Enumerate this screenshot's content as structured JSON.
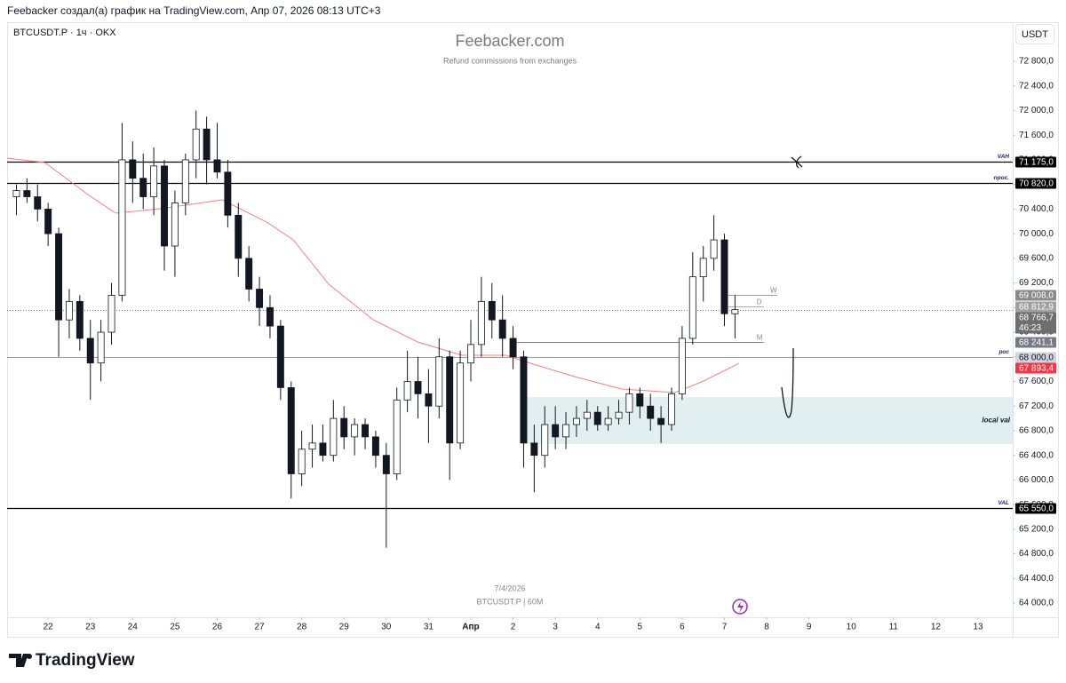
{
  "header": {
    "text": "Feebacker создал(а) график на TradingView.com, Апр 07, 2026 08:13 UTC+3"
  },
  "chart_data": {
    "type": "candlestick",
    "symbol": "BTCUSDT.P · 1ч · OKX",
    "title": "Feebacker.com",
    "subtitle": "Refund commissions from exchanges",
    "currency": "USDT",
    "up_color": "#ffffff",
    "down_color": "#131722",
    "grid": false,
    "x": [
      21.25,
      21.5,
      21.75,
      22,
      22.25,
      22.5,
      22.75,
      23,
      23.25,
      23.5,
      23.75,
      24,
      24.25,
      24.5,
      24.75,
      25,
      25.25,
      25.5,
      25.75,
      26,
      26.25,
      26.5,
      26.75,
      27,
      27.25,
      27.5,
      27.75,
      28,
      28.25,
      28.5,
      28.75,
      29,
      29.25,
      29.5,
      29.75,
      30,
      30.25,
      30.5,
      30.75,
      31,
      31.25,
      31.5,
      31.75,
      32,
      32.25,
      32.5,
      32.75,
      33,
      33.25,
      33.5,
      33.75,
      34,
      34.25,
      34.5,
      34.75,
      35,
      35.25,
      35.5,
      35.75,
      36,
      36.25,
      36.5,
      36.75,
      37,
      37.25,
      37.5,
      37.75,
      38,
      38.25
    ],
    "open": [
      70600,
      70700,
      70600,
      70400,
      70000,
      68600,
      68900,
      68300,
      67900,
      68400,
      69000,
      71200,
      70900,
      70600,
      71100,
      69800,
      70500,
      71200,
      71700,
      71200,
      71000,
      70300,
      69600,
      69100,
      68800,
      68500,
      67500,
      66100,
      66500,
      66600,
      66400,
      67000,
      66700,
      66900,
      66700,
      66400,
      66100,
      67300,
      67600,
      67400,
      67200,
      68000,
      66600,
      67900,
      68200,
      68900,
      68600,
      68300,
      68000,
      66600,
      66400,
      66900,
      66700,
      66900,
      67000,
      67100,
      66900,
      67000,
      67100,
      67400,
      67200,
      67000,
      66900,
      67400,
      68300,
      69300,
      69600,
      69900,
      68700
    ],
    "high": [
      70800,
      70900,
      70800,
      70500,
      70100,
      69100,
      69000,
      68600,
      68600,
      69200,
      71800,
      71500,
      71300,
      71400,
      71200,
      70700,
      71300,
      72000,
      71900,
      71800,
      71200,
      70500,
      69800,
      69300,
      69000,
      68600,
      67600,
      66800,
      66900,
      66900,
      67300,
      67200,
      67000,
      67000,
      66800,
      66600,
      67500,
      68100,
      68000,
      67800,
      68300,
      68100,
      68100,
      68600,
      69300,
      69200,
      69000,
      68500,
      68100,
      66900,
      67200,
      67200,
      67100,
      67200,
      67300,
      67200,
      67200,
      67300,
      67500,
      67500,
      67400,
      67200,
      67500,
      68500,
      69700,
      69800,
      70300,
      70000,
      69000
    ],
    "low": [
      70300,
      70500,
      70200,
      69800,
      68000,
      68300,
      68100,
      67300,
      67600,
      68200,
      68900,
      70500,
      70400,
      70300,
      69400,
      69300,
      70300,
      70900,
      70800,
      70900,
      70100,
      69300,
      68900,
      68500,
      68300,
      67300,
      65700,
      65900,
      66200,
      66300,
      66300,
      66500,
      66400,
      66500,
      66200,
      64900,
      66000,
      67100,
      67000,
      66600,
      67000,
      66000,
      66500,
      67600,
      68000,
      68300,
      68000,
      67800,
      66200,
      65800,
      66200,
      66500,
      66500,
      66700,
      66800,
      66800,
      66800,
      66900,
      66900,
      67000,
      66800,
      66600,
      66800,
      67300,
      68200,
      68900,
      69400,
      68500,
      68300
    ],
    "close": [
      70700,
      70600,
      70400,
      70000,
      68600,
      68900,
      68300,
      67900,
      68400,
      69000,
      71200,
      70900,
      70600,
      71100,
      69800,
      70500,
      71200,
      71700,
      71200,
      71000,
      70300,
      69600,
      69100,
      68800,
      68500,
      67500,
      66100,
      66500,
      66600,
      66400,
      67000,
      66700,
      66900,
      66700,
      66400,
      66100,
      67300,
      67600,
      67400,
      67200,
      68000,
      66600,
      67900,
      68200,
      68900,
      68600,
      68300,
      68000,
      66600,
      66400,
      66900,
      66700,
      66900,
      67000,
      67100,
      66900,
      67000,
      67100,
      67400,
      67200,
      67000,
      66900,
      67400,
      68300,
      69300,
      69600,
      69900,
      68700,
      68766.7
    ],
    "xlim": [
      21.03,
      44.82
    ],
    "xticks": [
      22,
      23,
      24,
      25,
      26,
      27,
      28,
      29,
      30,
      31,
      {
        "value": 32,
        "label": "Апр"
      },
      {
        "value": 33,
        "label": "2"
      },
      {
        "value": 34,
        "label": "3"
      },
      {
        "value": 35,
        "label": "4"
      },
      {
        "value": 36,
        "label": "5"
      },
      {
        "value": 37,
        "label": "6"
      },
      {
        "value": 38,
        "label": "7"
      },
      {
        "value": 39,
        "label": "8"
      },
      {
        "value": 40,
        "label": "9"
      },
      {
        "value": 41,
        "label": "10"
      },
      {
        "value": 42,
        "label": "11"
      },
      {
        "value": 43,
        "label": "12"
      },
      {
        "value": 44,
        "label": "13"
      }
    ],
    "ylim": [
      63770,
      73435
    ],
    "yticks": [
      {
        "value": 64000,
        "label": "64 000,0"
      },
      {
        "value": 64400,
        "label": "64 400,0"
      },
      {
        "value": 64800,
        "label": "64 800,0"
      },
      {
        "value": 65200,
        "label": "65 200,0"
      },
      {
        "value": 65600,
        "label": "65 600,0"
      },
      {
        "value": 66000,
        "label": "66 000,0"
      },
      {
        "value": 66400,
        "label": "66 400,0"
      },
      {
        "value": 66800,
        "label": "66 800,0"
      },
      {
        "value": 67200,
        "label": "67 200,0"
      },
      {
        "value": 67600,
        "label": "67 600,0"
      },
      {
        "value": 68000,
        "label": "68 000,0"
      },
      {
        "value": 68400,
        "label": "68 400,0"
      },
      {
        "value": 68800,
        "label": "68 800,0"
      },
      {
        "value": 69200,
        "label": "69 200,0"
      },
      {
        "value": 69600,
        "label": "69 600,0"
      },
      {
        "value": 70000,
        "label": "70 000,0"
      },
      {
        "value": 70400,
        "label": "70 400,0"
      },
      {
        "value": 70800,
        "label": "70 800,0"
      },
      {
        "value": 71200,
        "label": "71 200,0"
      },
      {
        "value": 71600,
        "label": "71 600,0"
      },
      {
        "value": 72000,
        "label": "72 000,0"
      },
      {
        "value": 72400,
        "label": "72 400,0"
      },
      {
        "value": 72800,
        "label": "72 800,0"
      }
    ],
    "overlays": [
      {
        "type": "line",
        "color": "#f08080",
        "x": [
          21.03,
          21.92,
          22.97,
          23.6,
          24.65,
          26.12,
          27.17,
          27.8,
          28.64,
          29.69,
          30.74,
          31.79,
          32.84,
          33.47,
          34.52,
          35.57,
          36.83,
          37.46,
          38.34
        ],
        "values": [
          71228,
          71156,
          70622,
          70334,
          70405,
          70550,
          70190,
          69901,
          69180,
          68603,
          68242,
          68026,
          68026,
          67882,
          67666,
          67478,
          67420,
          67593,
          67893.4
        ],
        "last_label": "67 893,4",
        "box": "#f23645",
        "text_color": "#ffffff"
      }
    ],
    "levels": [
      {
        "name": "VAH",
        "value": 71175,
        "label": "71 175,0",
        "color": "#000000",
        "box": "#000000",
        "text_color": "#ffffff"
      },
      {
        "name": "npoc.",
        "value": 70820,
        "label": "70 820,0",
        "color": "#000000",
        "box": "#000000",
        "text_color": "#ffffff"
      },
      {
        "name": "W",
        "value": 69008,
        "label": "69 008,0",
        "color": "#9e9e9e",
        "box": "#8a8a8a",
        "text_color": "#ffffff",
        "x_from": 38.09,
        "x_to": 39.25
      },
      {
        "name": "D",
        "value": 68812.9,
        "label": "68 812,9",
        "color": "#b0b0b0",
        "box": "#a0a0a0",
        "text_color": "#ffffff",
        "x_from": 38.09,
        "x_to": 38.93
      },
      {
        "value": 68766.7,
        "label": "68 766,7",
        "sub": "46:23",
        "style": "dotted",
        "color": "#787b86",
        "box": "#6f6f6f",
        "text_color": "#ffffff"
      },
      {
        "name": "M",
        "value": 68241.1,
        "label": "68 241,1",
        "color": "#787b86",
        "box": "#787b86",
        "text_color": "#ffffff",
        "x_from": 32.95,
        "x_to": 38.93
      },
      {
        "name": "poc",
        "value": 68000,
        "label": "68 000,0",
        "color": "#9e9e9e",
        "box": "#d1d4dc",
        "text_color": "#131722"
      },
      {
        "name": "VAL",
        "value": 65550,
        "label": "65 550,0",
        "color": "#000000",
        "box": "#000000",
        "text_color": "#ffffff"
      }
    ],
    "zone": {
      "name": "local val",
      "from": 66583,
      "to": 67347,
      "x_from": 33.22,
      "color": "#e2eff0"
    },
    "annotations": [
      "7/4/2026",
      "BTCUSDT.P | 60M"
    ]
  },
  "footer": {
    "logo": "TradingView"
  }
}
